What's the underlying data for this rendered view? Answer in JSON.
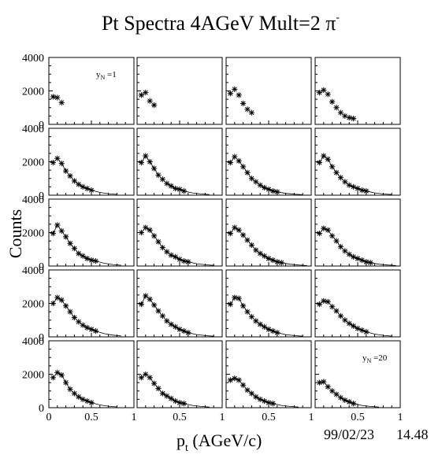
{
  "chart_data": {
    "type": "scatter",
    "title": "Pt Spectra 4AGeV Mult=2 π",
    "title_superscript": "-",
    "ylabel": "Counts",
    "xlabel_main": "p",
    "xlabel_sub": "t",
    "xlabel_rest": " (AGeV/c)",
    "date": "99/02/23",
    "time": "14.48",
    "grid": "5 rows x 4 columns",
    "xlim": [
      0,
      1
    ],
    "ylim": [
      0,
      4000
    ],
    "y_ticks": [
      "0",
      "2000",
      "4000"
    ],
    "x_ticks": [
      "0",
      "0.5",
      "1"
    ],
    "marker": "asterisk",
    "panel_labels": [
      {
        "panel": 0,
        "main": "y",
        "sub": "N",
        "rest": " =1"
      },
      {
        "panel": 19,
        "main": "y",
        "sub": "N",
        "rest": " =20"
      }
    ],
    "panels": [
      {
        "points": [
          [
            0.05,
            1650
          ],
          [
            0.1,
            1600
          ],
          [
            0.15,
            1300
          ]
        ]
      },
      {
        "points": [
          [
            0.05,
            1750
          ],
          [
            0.1,
            1900
          ],
          [
            0.15,
            1400
          ],
          [
            0.2,
            1150
          ]
        ]
      },
      {
        "points": [
          [
            0.05,
            1850
          ],
          [
            0.1,
            2100
          ],
          [
            0.15,
            1750
          ],
          [
            0.2,
            1250
          ],
          [
            0.25,
            900
          ],
          [
            0.3,
            700
          ]
        ]
      },
      {
        "points": [
          [
            0.05,
            1900
          ],
          [
            0.1,
            2050
          ],
          [
            0.15,
            1800
          ],
          [
            0.2,
            1350
          ],
          [
            0.25,
            1000
          ],
          [
            0.3,
            700
          ],
          [
            0.35,
            500
          ],
          [
            0.4,
            400
          ],
          [
            0.45,
            350
          ]
        ]
      },
      {
        "points": [
          [
            0.05,
            1950
          ],
          [
            0.1,
            2200
          ],
          [
            0.15,
            1900
          ],
          [
            0.2,
            1450
          ],
          [
            0.25,
            1150
          ],
          [
            0.3,
            850
          ],
          [
            0.35,
            650
          ],
          [
            0.4,
            500
          ],
          [
            0.45,
            400
          ],
          [
            0.5,
            300
          ]
        ],
        "curve": true
      },
      {
        "points": [
          [
            0.05,
            1950
          ],
          [
            0.1,
            2350
          ],
          [
            0.15,
            2000
          ],
          [
            0.2,
            1600
          ],
          [
            0.25,
            1200
          ],
          [
            0.3,
            950
          ],
          [
            0.35,
            700
          ],
          [
            0.4,
            550
          ],
          [
            0.45,
            400
          ],
          [
            0.5,
            350
          ],
          [
            0.55,
            250
          ]
        ],
        "curve": true
      },
      {
        "points": [
          [
            0.05,
            1950
          ],
          [
            0.1,
            2300
          ],
          [
            0.15,
            2050
          ],
          [
            0.2,
            1700
          ],
          [
            0.25,
            1350
          ],
          [
            0.3,
            1000
          ],
          [
            0.35,
            800
          ],
          [
            0.4,
            600
          ],
          [
            0.45,
            450
          ],
          [
            0.5,
            350
          ],
          [
            0.55,
            250
          ],
          [
            0.6,
            200
          ]
        ],
        "curve": true
      },
      {
        "points": [
          [
            0.05,
            1950
          ],
          [
            0.1,
            2350
          ],
          [
            0.15,
            2150
          ],
          [
            0.2,
            1700
          ],
          [
            0.25,
            1350
          ],
          [
            0.3,
            1050
          ],
          [
            0.35,
            800
          ],
          [
            0.4,
            600
          ],
          [
            0.45,
            500
          ],
          [
            0.5,
            400
          ],
          [
            0.55,
            300
          ],
          [
            0.6,
            250
          ]
        ],
        "curve": true
      },
      {
        "points": [
          [
            0.05,
            1950
          ],
          [
            0.1,
            2450
          ],
          [
            0.15,
            2100
          ],
          [
            0.2,
            1750
          ],
          [
            0.25,
            1350
          ],
          [
            0.3,
            1050
          ],
          [
            0.35,
            750
          ],
          [
            0.4,
            600
          ],
          [
            0.45,
            450
          ],
          [
            0.5,
            350
          ],
          [
            0.55,
            300
          ]
        ],
        "curve": true
      },
      {
        "points": [
          [
            0.05,
            2000
          ],
          [
            0.1,
            2300
          ],
          [
            0.15,
            2150
          ],
          [
            0.2,
            1800
          ],
          [
            0.25,
            1450
          ],
          [
            0.3,
            1100
          ],
          [
            0.35,
            850
          ],
          [
            0.4,
            650
          ],
          [
            0.45,
            550
          ],
          [
            0.5,
            400
          ],
          [
            0.55,
            300
          ],
          [
            0.6,
            250
          ]
        ],
        "curve": true
      },
      {
        "points": [
          [
            0.05,
            1950
          ],
          [
            0.1,
            2300
          ],
          [
            0.15,
            2150
          ],
          [
            0.2,
            1850
          ],
          [
            0.25,
            1550
          ],
          [
            0.3,
            1250
          ],
          [
            0.35,
            950
          ],
          [
            0.4,
            750
          ],
          [
            0.45,
            600
          ],
          [
            0.5,
            450
          ],
          [
            0.55,
            350
          ],
          [
            0.6,
            250
          ],
          [
            0.65,
            200
          ]
        ],
        "curve": true
      },
      {
        "points": [
          [
            0.05,
            1950
          ],
          [
            0.1,
            2250
          ],
          [
            0.15,
            2150
          ],
          [
            0.2,
            1800
          ],
          [
            0.25,
            1500
          ],
          [
            0.3,
            1150
          ],
          [
            0.35,
            900
          ],
          [
            0.4,
            700
          ],
          [
            0.45,
            550
          ],
          [
            0.5,
            450
          ],
          [
            0.55,
            350
          ],
          [
            0.6,
            250
          ],
          [
            0.65,
            200
          ]
        ],
        "curve": true
      },
      {
        "points": [
          [
            0.05,
            2000
          ],
          [
            0.1,
            2350
          ],
          [
            0.15,
            2200
          ],
          [
            0.2,
            1850
          ],
          [
            0.25,
            1500
          ],
          [
            0.3,
            1150
          ],
          [
            0.35,
            900
          ],
          [
            0.4,
            700
          ],
          [
            0.45,
            550
          ],
          [
            0.5,
            450
          ],
          [
            0.55,
            350
          ]
        ],
        "curve": true
      },
      {
        "points": [
          [
            0.05,
            1950
          ],
          [
            0.1,
            2450
          ],
          [
            0.15,
            2250
          ],
          [
            0.2,
            1900
          ],
          [
            0.25,
            1550
          ],
          [
            0.3,
            1250
          ],
          [
            0.35,
            950
          ],
          [
            0.4,
            750
          ],
          [
            0.45,
            600
          ],
          [
            0.5,
            450
          ],
          [
            0.55,
            350
          ],
          [
            0.6,
            250
          ]
        ],
        "curve": true
      },
      {
        "points": [
          [
            0.05,
            1950
          ],
          [
            0.1,
            2350
          ],
          [
            0.15,
            2300
          ],
          [
            0.2,
            1850
          ],
          [
            0.25,
            1500
          ],
          [
            0.3,
            1200
          ],
          [
            0.35,
            950
          ],
          [
            0.4,
            750
          ],
          [
            0.45,
            600
          ],
          [
            0.5,
            450
          ],
          [
            0.55,
            350
          ],
          [
            0.6,
            250
          ]
        ],
        "curve": true
      },
      {
        "points": [
          [
            0.05,
            1950
          ],
          [
            0.1,
            2150
          ],
          [
            0.15,
            2100
          ],
          [
            0.2,
            1800
          ],
          [
            0.25,
            1550
          ],
          [
            0.3,
            1250
          ],
          [
            0.35,
            1000
          ],
          [
            0.4,
            800
          ],
          [
            0.45,
            650
          ],
          [
            0.5,
            500
          ],
          [
            0.55,
            400
          ],
          [
            0.6,
            300
          ]
        ],
        "curve": true
      },
      {
        "points": [
          [
            0.05,
            1800
          ],
          [
            0.1,
            2100
          ],
          [
            0.15,
            1950
          ],
          [
            0.2,
            1500
          ],
          [
            0.25,
            1100
          ],
          [
            0.3,
            850
          ],
          [
            0.35,
            650
          ],
          [
            0.4,
            500
          ],
          [
            0.45,
            400
          ],
          [
            0.5,
            300
          ]
        ],
        "curve": true
      },
      {
        "points": [
          [
            0.05,
            1800
          ],
          [
            0.1,
            2000
          ],
          [
            0.15,
            1800
          ],
          [
            0.2,
            1450
          ],
          [
            0.25,
            1150
          ],
          [
            0.3,
            850
          ],
          [
            0.35,
            700
          ],
          [
            0.4,
            550
          ],
          [
            0.45,
            400
          ],
          [
            0.5,
            300
          ],
          [
            0.55,
            250
          ]
        ],
        "curve": true
      },
      {
        "points": [
          [
            0.05,
            1650
          ],
          [
            0.1,
            1750
          ],
          [
            0.15,
            1650
          ],
          [
            0.2,
            1350
          ],
          [
            0.25,
            1050
          ],
          [
            0.3,
            850
          ],
          [
            0.35,
            650
          ],
          [
            0.4,
            500
          ],
          [
            0.45,
            400
          ],
          [
            0.5,
            300
          ],
          [
            0.55,
            250
          ]
        ],
        "curve": true
      },
      {
        "points": [
          [
            0.05,
            1500
          ],
          [
            0.1,
            1550
          ],
          [
            0.15,
            1250
          ],
          [
            0.2,
            1000
          ],
          [
            0.25,
            800
          ],
          [
            0.3,
            600
          ],
          [
            0.35,
            450
          ],
          [
            0.4,
            350
          ],
          [
            0.45,
            250
          ]
        ],
        "curve": true
      }
    ]
  }
}
